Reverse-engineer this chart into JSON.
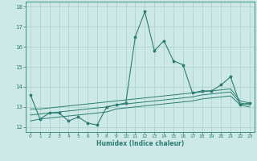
{
  "xlabel": "Humidex (Indice chaleur)",
  "xlim": [
    -0.5,
    23.5
  ],
  "ylim": [
    11.75,
    18.25
  ],
  "yticks": [
    12,
    13,
    14,
    15,
    16,
    17,
    18
  ],
  "xticks": [
    0,
    1,
    2,
    3,
    4,
    5,
    6,
    7,
    8,
    9,
    10,
    11,
    12,
    13,
    14,
    15,
    16,
    17,
    18,
    19,
    20,
    21,
    22,
    23
  ],
  "bg_color": "#cce9e7",
  "line_color": "#2d7d72",
  "grid_color": "#aed4d0",
  "series0": [
    13.6,
    12.4,
    12.7,
    12.7,
    12.3,
    12.5,
    12.2,
    12.1,
    13.0,
    13.1,
    13.2,
    16.5,
    17.75,
    15.8,
    16.3,
    15.3,
    15.1,
    13.7,
    13.8,
    13.8,
    14.1,
    14.5,
    13.1,
    13.2
  ],
  "series1": [
    12.9,
    12.9,
    12.95,
    13.0,
    13.05,
    13.1,
    13.15,
    13.2,
    13.25,
    13.3,
    13.35,
    13.4,
    13.45,
    13.5,
    13.55,
    13.6,
    13.65,
    13.7,
    13.75,
    13.8,
    13.85,
    13.9,
    13.3,
    13.2
  ],
  "series2": [
    12.6,
    12.65,
    12.7,
    12.75,
    12.8,
    12.85,
    12.9,
    12.95,
    13.0,
    13.1,
    13.15,
    13.2,
    13.25,
    13.3,
    13.35,
    13.4,
    13.45,
    13.5,
    13.6,
    13.65,
    13.7,
    13.75,
    13.2,
    13.1
  ],
  "series3": [
    12.3,
    12.4,
    12.45,
    12.5,
    12.55,
    12.6,
    12.65,
    12.7,
    12.75,
    12.9,
    12.95,
    13.0,
    13.05,
    13.1,
    13.15,
    13.2,
    13.25,
    13.3,
    13.4,
    13.45,
    13.5,
    13.55,
    13.1,
    13.0
  ]
}
